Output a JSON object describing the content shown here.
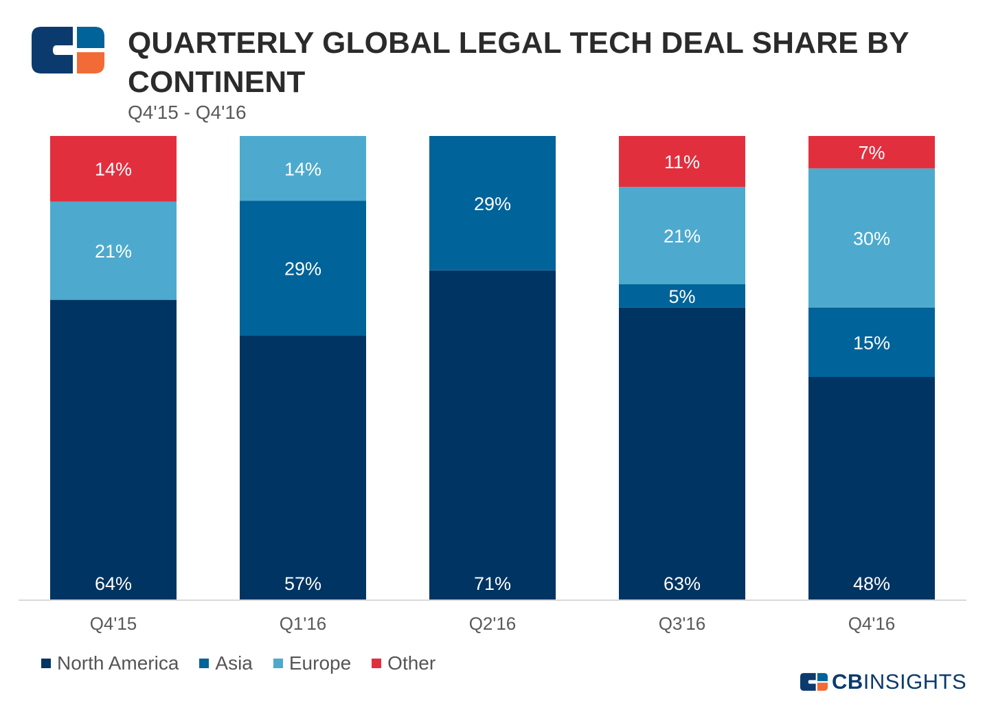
{
  "header": {
    "title": "QUARTERLY GLOBAL LEGAL TECH DEAL SHARE BY CONTINENT",
    "subtitle": "Q4'15 - Q4'16"
  },
  "brand": {
    "bold": "CB",
    "regular": "INSIGHTS"
  },
  "colors": {
    "north_america": "#003462",
    "asia": "#006399",
    "europe": "#4daace",
    "other": "#e22f3e",
    "axis": "#d9d9d9",
    "logo_orange": "#f26b36"
  },
  "chart_data": {
    "type": "bar",
    "stacked": true,
    "title": "QUARTERLY GLOBAL LEGAL TECH DEAL SHARE BY CONTINENT",
    "subtitle": "Q4'15 - Q4'16",
    "categories": [
      "Q4'15",
      "Q1'16",
      "Q2'16",
      "Q3'16",
      "Q4'16"
    ],
    "series": [
      {
        "name": "North America",
        "key": "north_america",
        "values": [
          64,
          57,
          71,
          63,
          48
        ]
      },
      {
        "name": "Asia",
        "key": "asia",
        "values": [
          0,
          29,
          29,
          5,
          15
        ]
      },
      {
        "name": "Europe",
        "key": "europe",
        "values": [
          21,
          14,
          0,
          21,
          30
        ]
      },
      {
        "name": "Other",
        "key": "other",
        "values": [
          14,
          0,
          0,
          11,
          7
        ]
      }
    ],
    "value_suffix": "%",
    "ylim": [
      0,
      100
    ],
    "xlabel": "",
    "ylabel": "",
    "legend": "bottom-left",
    "grid": false
  }
}
